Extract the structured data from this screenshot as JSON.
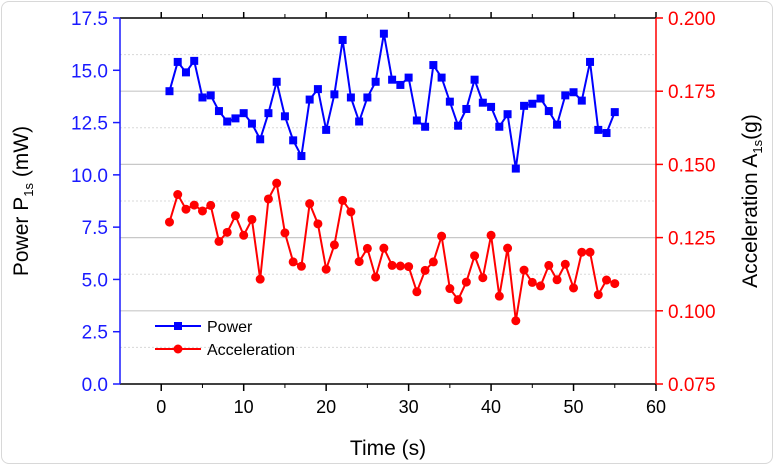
{
  "chart_data": {
    "type": "line",
    "title": "",
    "xlabel": "Time (s)",
    "ylabel_left": {
      "main": "Power P",
      "sub": "1s",
      "unit": " (mW)"
    },
    "ylabel_right": {
      "main": "Acceleration A",
      "sub": "1s",
      "unit": "(g)"
    },
    "xlim": [
      -5,
      60
    ],
    "ylim_left": [
      0,
      17.5
    ],
    "ylim_right": [
      0.075,
      0.2
    ],
    "x_ticks": [
      "0",
      "10",
      "20",
      "30",
      "40",
      "50",
      "60"
    ],
    "y_left_ticks": [
      "0.0",
      "2.5",
      "5.0",
      "7.5",
      "10.0",
      "12.5",
      "15.0",
      "17.5"
    ],
    "y_right_ticks": [
      "0.075",
      "0.100",
      "0.125",
      "0.150",
      "0.175",
      "0.200"
    ],
    "grid": true,
    "legend_position": "bottom-left",
    "colors": {
      "left_axis": "#1a1aff",
      "right_axis": "#ff0000",
      "power": "#0000ff",
      "acceleration": "#ff0000"
    },
    "x": [
      1,
      2,
      3,
      4,
      5,
      6,
      7,
      8,
      9,
      10,
      11,
      12,
      13,
      14,
      15,
      16,
      17,
      18,
      19,
      20,
      21,
      22,
      23,
      24,
      25,
      26,
      27,
      28,
      29,
      30,
      31,
      32,
      33,
      34,
      35,
      36,
      37,
      38,
      39,
      40,
      41,
      42,
      43,
      44,
      45,
      46,
      47,
      48,
      49,
      50,
      51,
      52,
      53,
      54,
      55
    ],
    "series": [
      {
        "name": "Power",
        "axis": "left",
        "marker": "square",
        "values": [
          14.0,
          15.4,
          14.9,
          15.45,
          13.7,
          13.8,
          13.05,
          12.55,
          12.7,
          12.95,
          12.45,
          11.7,
          12.95,
          14.45,
          12.8,
          11.65,
          10.9,
          13.6,
          14.1,
          12.15,
          13.85,
          16.45,
          13.7,
          12.55,
          13.7,
          14.45,
          16.75,
          14.55,
          14.3,
          14.65,
          12.6,
          12.3,
          15.25,
          14.65,
          13.5,
          12.35,
          13.15,
          14.55,
          13.45,
          13.25,
          12.3,
          12.9,
          10.3,
          13.3,
          13.4,
          13.65,
          13.05,
          12.4,
          13.8,
          13.95,
          13.55,
          15.4,
          12.15,
          12.0,
          13.0
        ]
      },
      {
        "name": "Acceleration",
        "axis": "right",
        "marker": "circle",
        "values": [
          0.1303,
          0.1397,
          0.1347,
          0.1361,
          0.1341,
          0.136,
          0.1237,
          0.1268,
          0.1325,
          0.1258,
          0.1312,
          0.1108,
          0.1382,
          0.1436,
          0.1266,
          0.1167,
          0.1152,
          0.1366,
          0.1297,
          0.1142,
          0.1225,
          0.1377,
          0.1338,
          0.1168,
          0.1213,
          0.1115,
          0.1214,
          0.1155,
          0.1153,
          0.1151,
          0.1065,
          0.1138,
          0.1167,
          0.1255,
          0.1076,
          0.1038,
          0.1098,
          0.1188,
          0.1113,
          0.1258,
          0.105,
          0.1214,
          0.0966,
          0.1139,
          0.1097,
          0.1085,
          0.1155,
          0.1106,
          0.1159,
          0.1078,
          0.12,
          0.12,
          0.1055,
          0.1105,
          0.1093
        ]
      }
    ]
  }
}
